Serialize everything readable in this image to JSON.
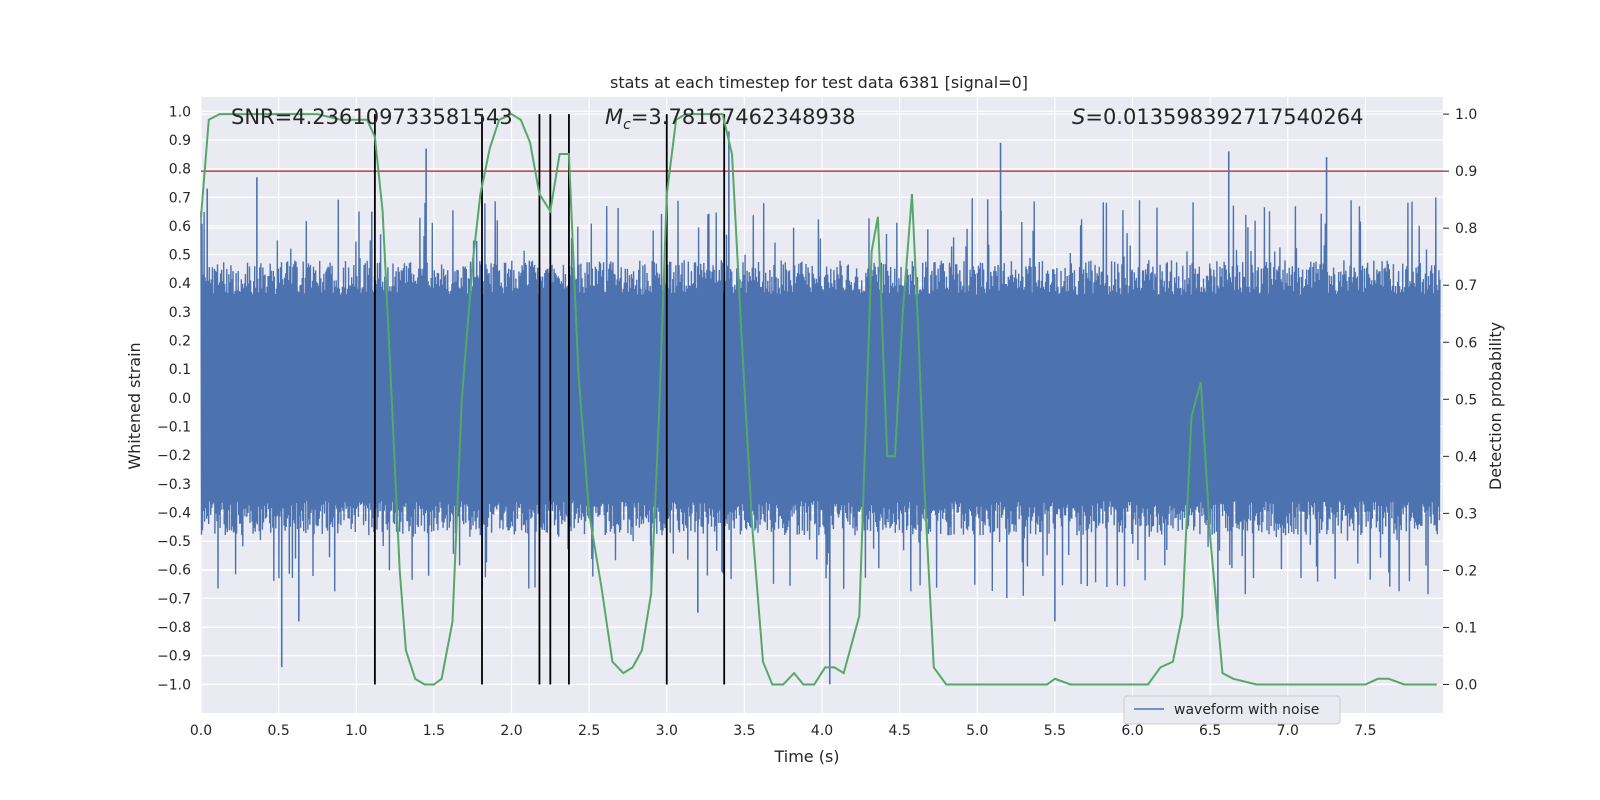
{
  "chart_data": {
    "type": "line",
    "title": "stats at each timestep for test data 6381 [signal=0]",
    "xlabel": "Time (s)",
    "ylabel_left": "Whitened strain",
    "ylabel_right": "Detection probability",
    "xlim": [
      0.0,
      8.0
    ],
    "ylim_left": [
      -1.1,
      1.05
    ],
    "ylim_right": [
      -0.05,
      1.03
    ],
    "x_ticks": [
      "0.0",
      "0.5",
      "1.0",
      "1.5",
      "2.0",
      "2.5",
      "3.0",
      "3.5",
      "4.0",
      "4.5",
      "5.0",
      "5.5",
      "6.0",
      "6.5",
      "7.0",
      "7.5"
    ],
    "y_ticks_left": [
      "1.0",
      "0.9",
      "0.8",
      "0.7",
      "0.6",
      "0.5",
      "0.4",
      "0.3",
      "0.2",
      "0.1",
      "0.0",
      "−0.1",
      "−0.2",
      "−0.3",
      "−0.4",
      "−0.5",
      "−0.6",
      "−0.7",
      "−0.8",
      "−0.9",
      "−1.0"
    ],
    "y_ticks_right": [
      "1.0",
      "0.9",
      "0.8",
      "0.7",
      "0.6",
      "0.5",
      "0.4",
      "0.3",
      "0.2",
      "0.1",
      "0.0"
    ],
    "grid": true,
    "legend": {
      "position": "lower-right",
      "label": "waveform with noise"
    },
    "annotations": {
      "snr": "SNR=4.236109733581543",
      "mc_symbol": "M",
      "mc_sub": "c",
      "mc_value": "=3.78167462348938",
      "s_symbol": "S",
      "s_value": "=0.013598392717540264"
    },
    "threshold": {
      "value": 0.9,
      "axis": "right",
      "color": "#c44e52"
    },
    "vertical_lines": [
      1.12,
      1.81,
      2.18,
      2.25,
      2.37,
      3.0,
      3.37
    ],
    "series": [
      {
        "name": "waveform with noise",
        "axis": "left",
        "color": "#4c72b0",
        "style": "noisy-strain",
        "baseline_amplitude": 0.36,
        "spikes": [
          [
            0.04,
            0.73
          ],
          [
            0.36,
            0.77
          ],
          [
            0.52,
            -0.94
          ],
          [
            0.63,
            -0.78
          ],
          [
            1.1,
            0.65
          ],
          [
            1.45,
            0.87
          ],
          [
            2.18,
            -0.5
          ],
          [
            2.25,
            0.66
          ],
          [
            2.37,
            -0.8
          ],
          [
            2.9,
            -0.68
          ],
          [
            3.2,
            -0.75
          ],
          [
            3.4,
            0.93
          ],
          [
            4.05,
            -1.0
          ],
          [
            4.05,
            -0.82
          ],
          [
            5.15,
            0.89
          ],
          [
            5.5,
            -0.78
          ],
          [
            6.55,
            -0.8
          ],
          [
            6.62,
            0.86
          ],
          [
            7.25,
            0.84
          ]
        ]
      },
      {
        "name": "detection probability",
        "axis": "right",
        "color": "#55a868",
        "x": [
          0.0,
          0.05,
          0.12,
          0.25,
          0.5,
          0.75,
          0.9,
          1.0,
          1.07,
          1.12,
          1.17,
          1.22,
          1.28,
          1.32,
          1.38,
          1.44,
          1.5,
          1.55,
          1.62,
          1.68,
          1.75,
          1.8,
          1.86,
          1.92,
          2.0,
          2.06,
          2.12,
          2.18,
          2.25,
          2.31,
          2.37,
          2.43,
          2.5,
          2.58,
          2.65,
          2.72,
          2.78,
          2.84,
          2.9,
          2.95,
          3.0,
          3.06,
          3.12,
          3.2,
          3.28,
          3.36,
          3.42,
          3.48,
          3.55,
          3.62,
          3.68,
          3.75,
          3.82,
          3.88,
          3.95,
          4.02,
          4.08,
          4.14,
          4.24,
          4.32,
          4.36,
          4.42,
          4.47,
          4.52,
          4.58,
          4.62,
          4.66,
          4.72,
          4.8,
          5.0,
          5.2,
          5.4,
          5.45,
          5.5,
          5.6,
          5.8,
          6.0,
          6.1,
          6.18,
          6.26,
          6.32,
          6.38,
          6.44,
          6.5,
          6.58,
          6.65,
          6.8,
          7.0,
          7.3,
          7.5,
          7.58,
          7.65,
          7.75,
          7.9,
          7.96
        ],
        "y": [
          0.82,
          0.99,
          1.0,
          1.0,
          1.0,
          1.0,
          0.99,
          0.99,
          0.99,
          0.96,
          0.83,
          0.55,
          0.2,
          0.06,
          0.01,
          0.0,
          0.0,
          0.01,
          0.11,
          0.5,
          0.74,
          0.86,
          0.94,
          0.99,
          1.0,
          0.99,
          0.95,
          0.86,
          0.83,
          0.93,
          0.93,
          0.55,
          0.3,
          0.17,
          0.04,
          0.02,
          0.03,
          0.06,
          0.16,
          0.47,
          0.86,
          0.99,
          1.0,
          1.0,
          1.0,
          1.0,
          0.93,
          0.62,
          0.28,
          0.04,
          0.0,
          0.0,
          0.02,
          0.0,
          0.0,
          0.03,
          0.03,
          0.02,
          0.12,
          0.76,
          0.82,
          0.4,
          0.4,
          0.65,
          0.86,
          0.62,
          0.34,
          0.03,
          0.0,
          0.0,
          0.0,
          0.0,
          0.0,
          0.01,
          0.0,
          0.0,
          0.0,
          0.0,
          0.03,
          0.04,
          0.12,
          0.47,
          0.53,
          0.26,
          0.02,
          0.01,
          0.0,
          0.0,
          0.0,
          0.0,
          0.01,
          0.01,
          0.0,
          0.0,
          0.0
        ]
      }
    ]
  }
}
